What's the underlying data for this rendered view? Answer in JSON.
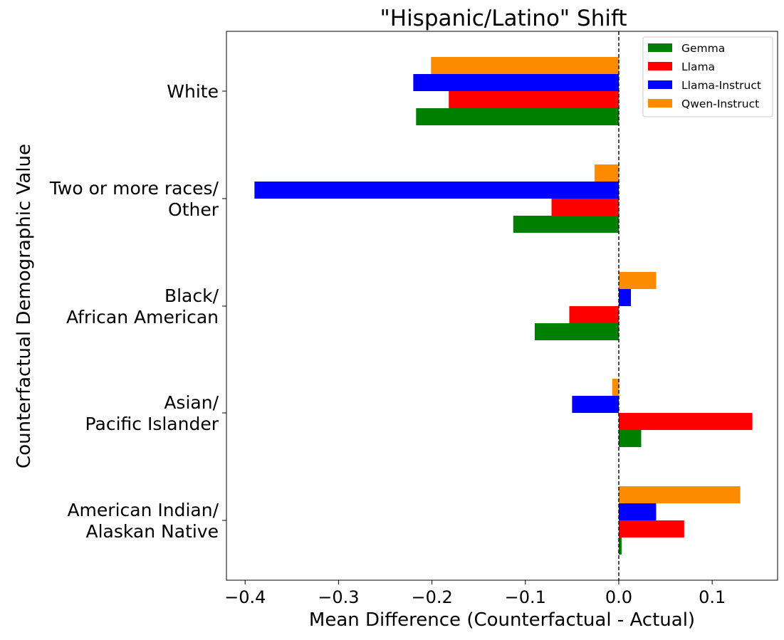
{
  "chart_data": {
    "type": "bar",
    "orientation": "horizontal",
    "title": "\"Hispanic/Latino\" Shift",
    "xlabel": "Mean Difference (Counterfactual - Actual)",
    "ylabel": "Counterfactual Demographic Value",
    "xlim": [
      -0.42,
      0.17
    ],
    "xticks": [
      -0.4,
      -0.3,
      -0.2,
      -0.1,
      0.0,
      0.1
    ],
    "xtick_labels": [
      "−0.4",
      "−0.3",
      "−0.2",
      "−0.1",
      "0.0",
      "0.1"
    ],
    "categories": [
      [
        "White"
      ],
      [
        "Two or more races/",
        "Other"
      ],
      [
        "Black/",
        "African American"
      ],
      [
        "Asian/",
        "Pacific Islander"
      ],
      [
        "American Indian/",
        "Alaskan Native"
      ]
    ],
    "reference_line": {
      "x": 0.0,
      "style": "dashed"
    },
    "legend_position": "top-right",
    "grid": false,
    "series": [
      {
        "name": "Gemma",
        "color": "#008000",
        "values": [
          -0.217,
          -0.113,
          -0.09,
          0.024,
          0.003
        ]
      },
      {
        "name": "Llama",
        "color": "#ff0000",
        "values": [
          -0.182,
          -0.072,
          -0.053,
          0.143,
          0.07
        ]
      },
      {
        "name": "Llama-Instruct",
        "color": "#0000ff",
        "values": [
          -0.22,
          -0.39,
          0.013,
          -0.05,
          0.04
        ]
      },
      {
        "name": "Qwen-Instruct",
        "color": "#ff8c00",
        "values": [
          -0.201,
          -0.026,
          0.04,
          -0.007,
          0.13
        ]
      }
    ]
  }
}
